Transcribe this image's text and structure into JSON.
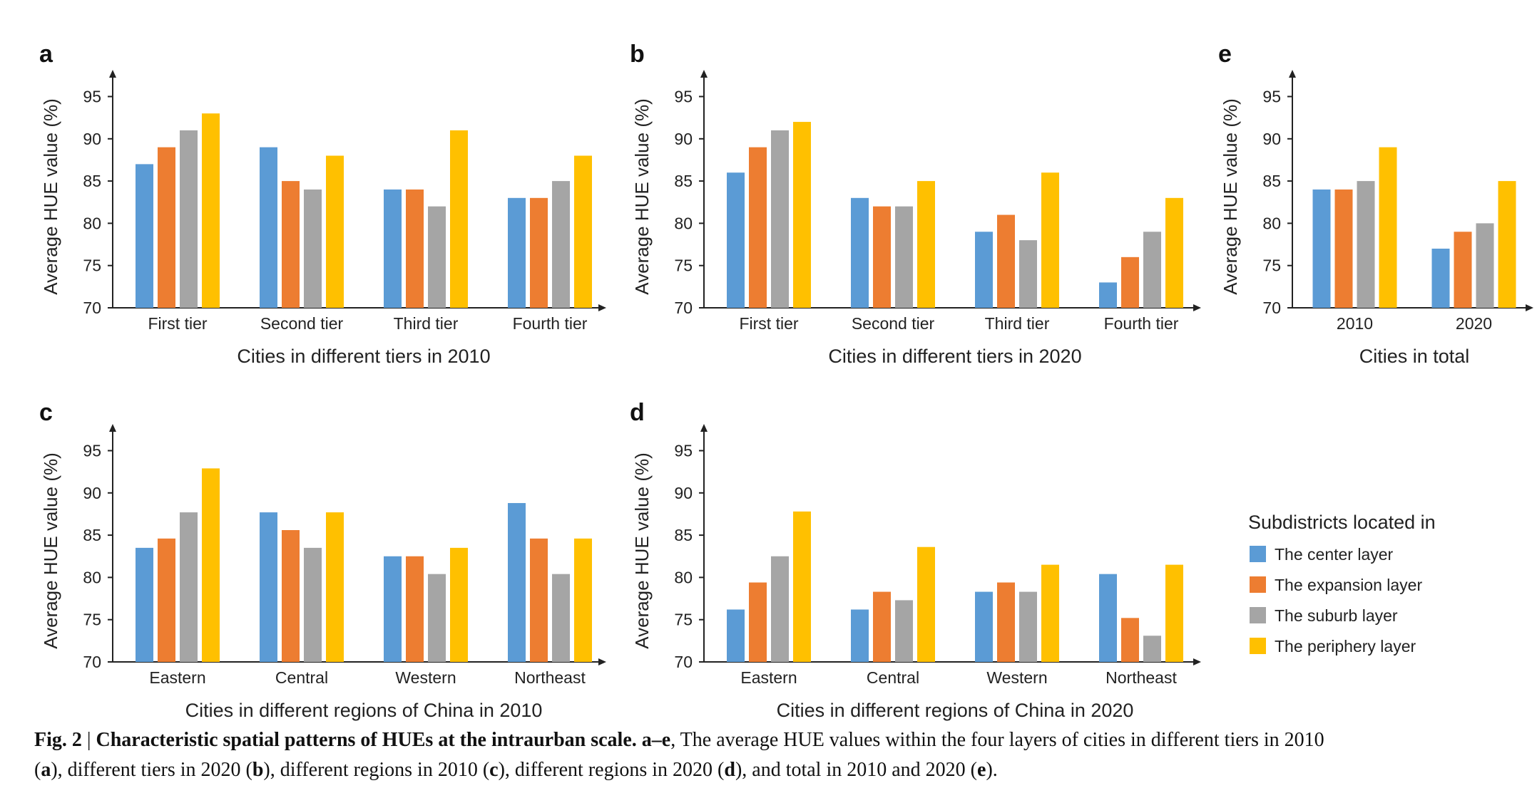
{
  "colors": {
    "center": "#5B9BD5",
    "expansion": "#ED7D31",
    "suburb": "#A5A5A5",
    "periphery": "#FFC000"
  },
  "legend": {
    "title": "Subdistricts located in",
    "items": [
      {
        "label": "The center layer",
        "color": "#5B9BD5"
      },
      {
        "label": "The expansion layer",
        "color": "#ED7D31"
      },
      {
        "label": "The suburb layer",
        "color": "#A5A5A5"
      },
      {
        "label": "The periphery layer",
        "color": "#FFC000"
      }
    ]
  },
  "caption": {
    "fig": "Fig. 2",
    "sep": " | ",
    "bold_title": "Characteristic spatial patterns of HUEs at the intraurban scale. a–e",
    "line1_rest": ", The average HUE values within the four layers of cities in different tiers in 2010",
    "p1": "(",
    "l_a": "a",
    "t1": "), different tiers in 2020 (",
    "l_b": "b",
    "t2": "), different regions in 2010 (",
    "l_c": "c",
    "t3": "), different regions in 2020 (",
    "l_d": "d",
    "t4": "), and total in 2010 and 2020 (",
    "l_e": "e",
    "t5": ")."
  },
  "chart_data": [
    {
      "panel": "a",
      "type": "bar",
      "xlabel": "Cities in different tiers in 2010",
      "ylabel": "Average HUE value (%)",
      "ylim": [
        70,
        97
      ],
      "yticks": [
        70,
        75,
        80,
        85,
        90,
        95
      ],
      "categories": [
        "First tier",
        "Second tier",
        "Third tier",
        "Fourth tier"
      ],
      "series": [
        {
          "values": [
            87,
            89,
            84,
            83
          ]
        },
        {
          "values": [
            89,
            85,
            84,
            83
          ]
        },
        {
          "values": [
            91,
            84,
            82,
            85
          ]
        },
        {
          "values": [
            93,
            88,
            91,
            88
          ]
        }
      ]
    },
    {
      "panel": "b",
      "type": "bar",
      "xlabel": "Cities in different tiers in 2020",
      "ylabel": "Average HUE value (%)",
      "ylim": [
        70,
        97
      ],
      "yticks": [
        70,
        75,
        80,
        85,
        90,
        95
      ],
      "categories": [
        "First tier",
        "Second tier",
        "Third tier",
        "Fourth tier"
      ],
      "series": [
        {
          "values": [
            86,
            83,
            79,
            73
          ]
        },
        {
          "values": [
            89,
            82,
            81,
            76
          ]
        },
        {
          "values": [
            91,
            82,
            78,
            79
          ]
        },
        {
          "values": [
            92,
            85,
            86,
            83
          ]
        }
      ]
    },
    {
      "panel": "e",
      "type": "bar",
      "xlabel": "Cities in total",
      "ylabel": "Average HUE value (%)",
      "ylim": [
        70,
        97
      ],
      "yticks": [
        70,
        75,
        80,
        85,
        90,
        95
      ],
      "categories": [
        "2010",
        "2020"
      ],
      "series": [
        {
          "values": [
            84,
            77
          ]
        },
        {
          "values": [
            84,
            79
          ]
        },
        {
          "values": [
            85,
            80
          ]
        },
        {
          "values": [
            89,
            85
          ]
        }
      ]
    },
    {
      "panel": "c",
      "type": "bar",
      "xlabel": "Cities in different regions of China in 2010",
      "ylabel": "Average HUE value (%)",
      "ylim": [
        70,
        97
      ],
      "yticks": [
        70,
        75,
        80,
        85,
        90,
        95
      ],
      "categories": [
        "Eastern",
        "Central",
        "Western",
        "Northeast"
      ],
      "series": [
        {
          "values": [
            83.5,
            87.7,
            82.5,
            88.8
          ]
        },
        {
          "values": [
            84.6,
            85.6,
            82.5,
            84.6
          ]
        },
        {
          "values": [
            87.7,
            83.5,
            80.4,
            80.4
          ]
        },
        {
          "values": [
            92.9,
            87.7,
            83.5,
            84.6
          ]
        }
      ]
    },
    {
      "panel": "d",
      "type": "bar",
      "xlabel": "Cities in different regions of China in 2020",
      "ylabel": "Average HUE value (%)",
      "ylim": [
        70,
        97
      ],
      "yticks": [
        70,
        75,
        80,
        85,
        90,
        95
      ],
      "categories": [
        "Eastern",
        "Central",
        "Western",
        "Northeast"
      ],
      "series": [
        {
          "values": [
            76.2,
            76.2,
            78.3,
            80.4
          ]
        },
        {
          "values": [
            79.4,
            78.3,
            79.4,
            75.2
          ]
        },
        {
          "values": [
            82.5,
            77.3,
            78.3,
            73.1
          ]
        },
        {
          "values": [
            87.8,
            83.6,
            81.5,
            81.5
          ]
        }
      ]
    }
  ]
}
